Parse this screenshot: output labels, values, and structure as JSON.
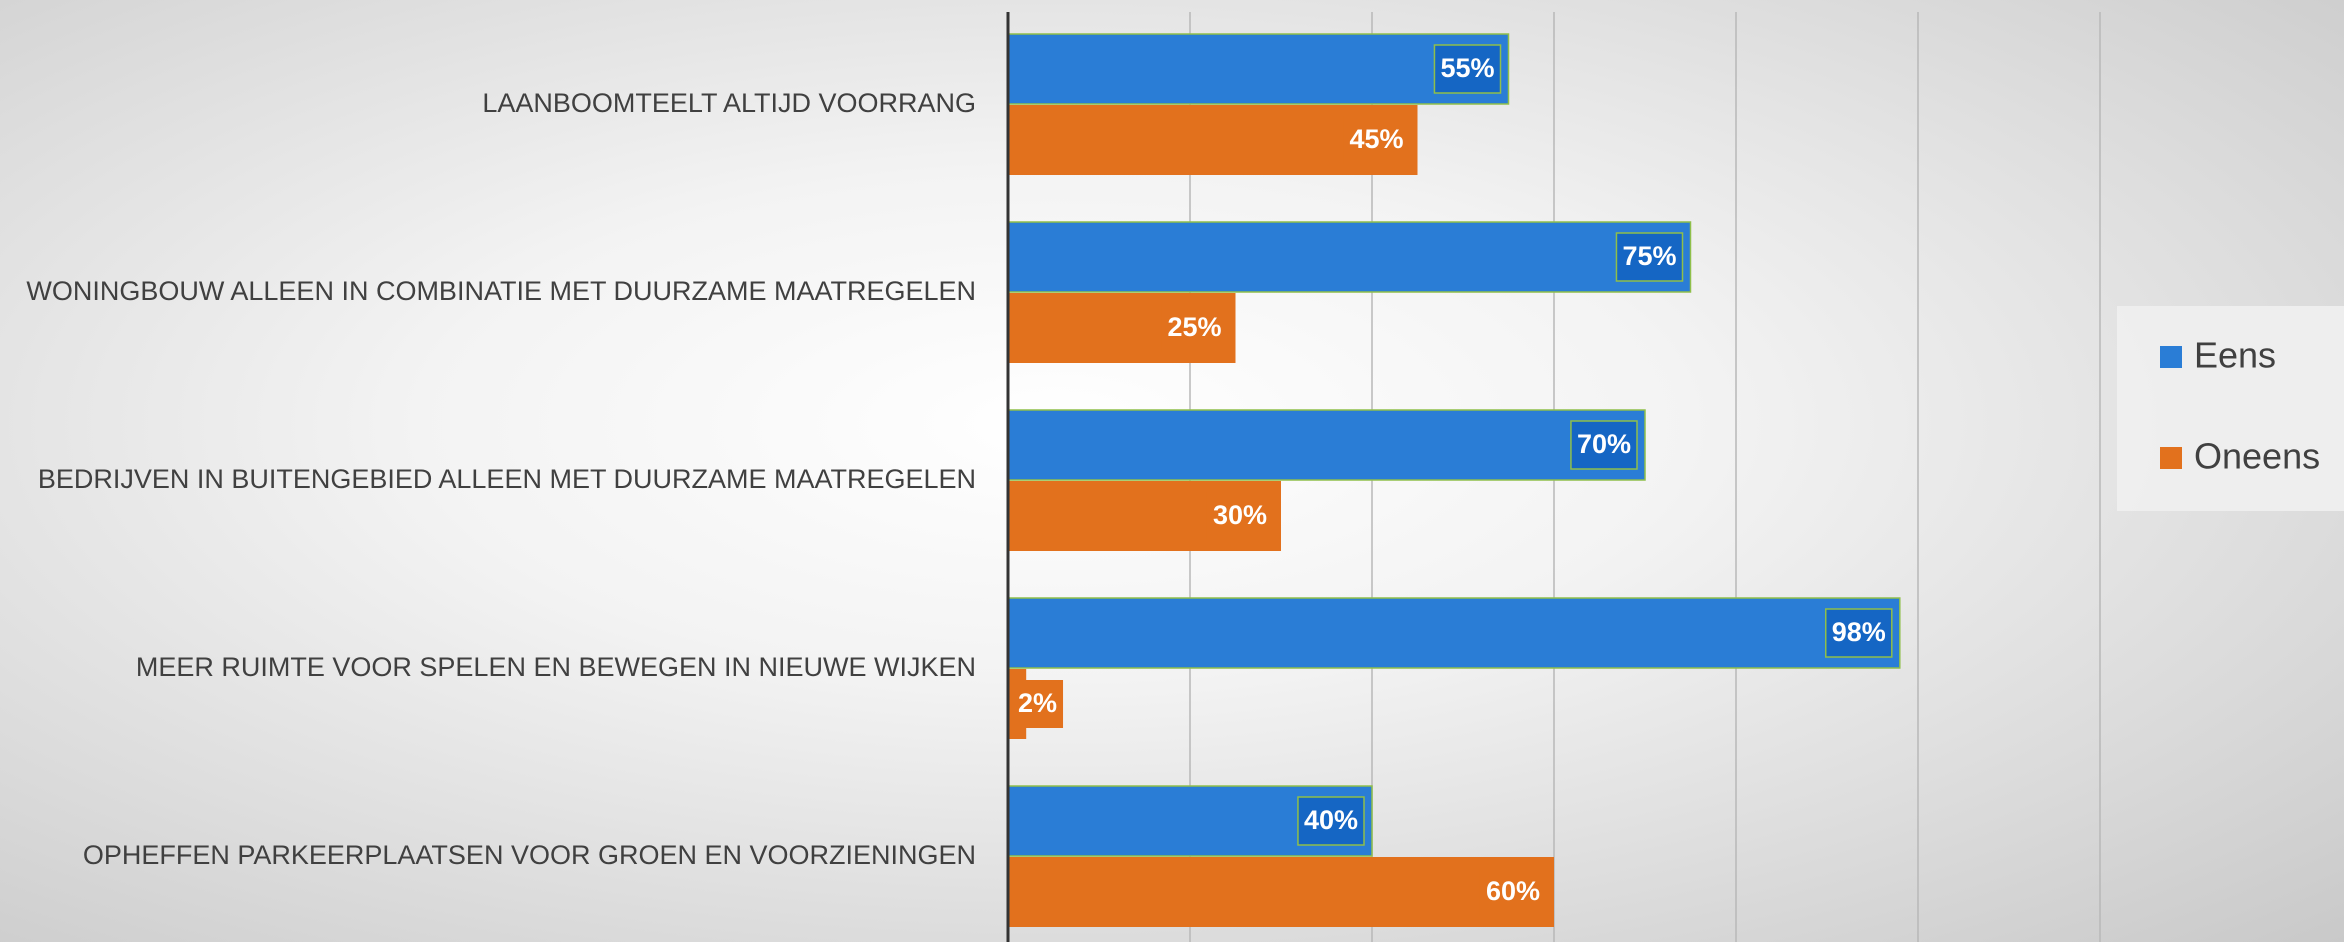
{
  "chart_data": {
    "type": "bar",
    "orientation": "horizontal",
    "categories": [
      "LAANBOOMTEELT ALTIJD VOORRANG",
      "WONINGBOUW ALLEEN IN COMBINATIE MET DUURZAME MAATREGELEN",
      "BEDRIJVEN IN BUITENGEBIED ALLEEN MET DUURZAME MAATREGELEN",
      "MEER RUIMTE VOOR SPELEN EN BEWEGEN IN NIEUWE WIJKEN",
      "OPHEFFEN PARKEERPLAATSEN VOOR GROEN EN VOORZIENINGEN"
    ],
    "series": [
      {
        "name": "Eens",
        "color": "#2a7dd6",
        "values": [
          55,
          75,
          70,
          98,
          40
        ],
        "value_labels": [
          "55%",
          "75%",
          "70%",
          "98%",
          "40%"
        ]
      },
      {
        "name": "Oneens",
        "color": "#e2711d",
        "values": [
          45,
          25,
          30,
          2,
          60
        ],
        "value_labels": [
          "45%",
          "25%",
          "30%",
          "2%",
          "60%"
        ]
      }
    ],
    "xlim": [
      0,
      120
    ],
    "xticks": [
      0,
      20,
      40,
      60,
      80,
      100,
      120
    ],
    "grid": true,
    "legend": "right"
  }
}
